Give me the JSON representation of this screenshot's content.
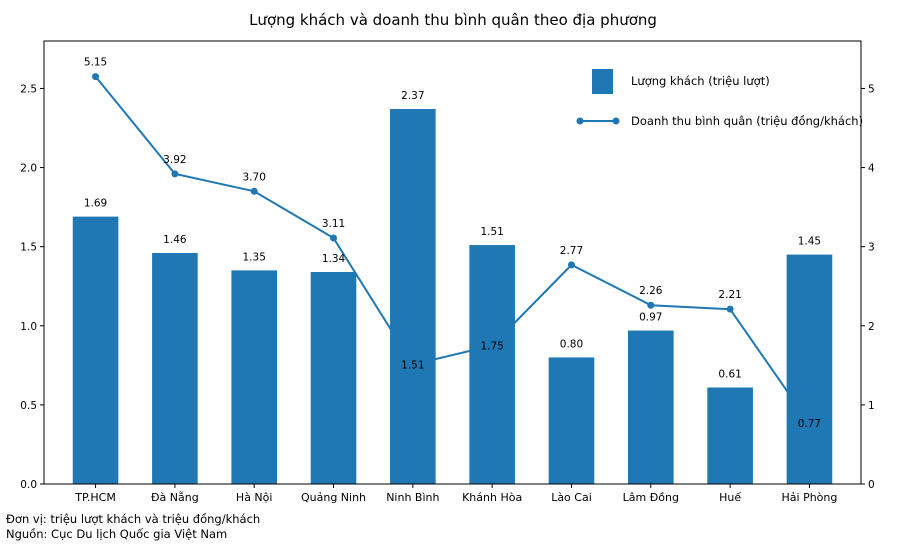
{
  "chart_data": {
    "type": "bar+line",
    "title": "Lượng khách và doanh thu bình quân theo địa phương",
    "categories": [
      "TP.HCM",
      "Đà Nẵng",
      "Hà Nội",
      "Quảng Ninh",
      "Ninh Bình",
      "Khánh Hòa",
      "Lào Cai",
      "Lâm Đồng",
      "Huế",
      "Hải Phòng"
    ],
    "series": [
      {
        "name": "Lượng khách (triệu lượt)",
        "type": "bar",
        "axis": "left",
        "color": "#1f77b4",
        "values": [
          1.69,
          1.46,
          1.35,
          1.34,
          2.37,
          1.51,
          0.8,
          0.97,
          0.61,
          1.45
        ],
        "labels": [
          "1.69",
          "1.46",
          "1.35",
          "1.34",
          "2.37",
          "1.51",
          "0.80",
          "0.97",
          "0.61",
          "1.45"
        ]
      },
      {
        "name": "Doanh thu bình quân (triệu đồng/khách)",
        "type": "line",
        "axis": "right",
        "color": "#1f77b4",
        "values": [
          5.15,
          3.92,
          3.7,
          3.11,
          1.51,
          1.75,
          2.77,
          2.26,
          2.21,
          0.77
        ],
        "labels": [
          "5.15",
          "3.92",
          "3.70",
          "3.11",
          "1.51",
          "1.75",
          "2.77",
          "2.26",
          "2.21",
          "0.77"
        ]
      }
    ],
    "y_left": {
      "ylim": [
        0,
        2.8
      ],
      "ticks": [
        "0.0",
        "0.5",
        "1.0",
        "1.5",
        "2.0",
        "2.5"
      ]
    },
    "y_right": {
      "ylim": [
        0,
        5.6
      ],
      "ticks": [
        "0",
        "1",
        "2",
        "3",
        "4",
        "5"
      ]
    },
    "grid": false,
    "legend_position": "top-right"
  },
  "notes": {
    "unit": "Đơn vị: triệu lượt khách và triệu đồng/khách",
    "source": "Nguồn: Cục Du lịch Quốc gia Việt Nam"
  }
}
